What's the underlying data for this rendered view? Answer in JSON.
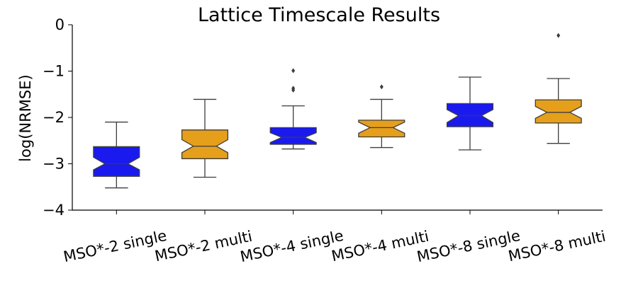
{
  "chart_data": {
    "type": "boxplot",
    "title": "Lattice Timescale Results",
    "xlabel": "",
    "ylabel": "log(NRMSE)",
    "ylim": [
      -4,
      0
    ],
    "yticks": [
      0,
      -1,
      -2,
      -3,
      -4
    ],
    "ytick_labels": [
      "0",
      "−1",
      "−2",
      "−3",
      "−4"
    ],
    "notched": true,
    "grid": false,
    "categories": [
      "MSO*-2 single",
      "MSO*-2 multi",
      "MSO*-4 single",
      "MSO*-4 multi",
      "MSO*-8 single",
      "MSO*-8 multi"
    ],
    "colors": [
      "#1a1aef",
      "#e59f1b",
      "#1a1aef",
      "#e59f1b",
      "#1a1aef",
      "#e59f1b"
    ],
    "boxes": [
      {
        "label": "MSO*-2 single",
        "whisker_low": -3.52,
        "q1": -3.27,
        "median": -3.0,
        "q3": -2.63,
        "whisker_high": -2.1,
        "notch_low": -3.13,
        "notch_high": -2.86,
        "outliers": []
      },
      {
        "label": "MSO*-2 multi",
        "whisker_low": -3.29,
        "q1": -2.89,
        "median": -2.62,
        "q3": -2.27,
        "whisker_high": -1.61,
        "notch_low": -2.76,
        "notch_high": -2.48,
        "outliers": []
      },
      {
        "label": "MSO*-4 single",
        "whisker_low": -2.68,
        "q1": -2.58,
        "median": -2.43,
        "q3": -2.22,
        "whisker_high": -1.75,
        "notch_low": -2.54,
        "notch_high": -2.33,
        "outliers": [
          -0.99,
          -1.37,
          -1.41
        ]
      },
      {
        "label": "MSO*-4 multi",
        "whisker_low": -2.65,
        "q1": -2.42,
        "median": -2.22,
        "q3": -2.06,
        "whisker_high": -1.61,
        "notch_low": -2.34,
        "notch_high": -2.1,
        "outliers": [
          -1.34
        ]
      },
      {
        "label": "MSO*-8 single",
        "whisker_low": -2.7,
        "q1": -2.2,
        "median": -1.96,
        "q3": -1.7,
        "whisker_high": -1.13,
        "notch_low": -2.11,
        "notch_high": -1.83,
        "outliers": []
      },
      {
        "label": "MSO*-8 multi",
        "whisker_low": -2.56,
        "q1": -2.12,
        "median": -1.89,
        "q3": -1.62,
        "whisker_high": -1.16,
        "notch_low": -2.02,
        "notch_high": -1.76,
        "outliers": [
          -0.23
        ]
      }
    ]
  }
}
